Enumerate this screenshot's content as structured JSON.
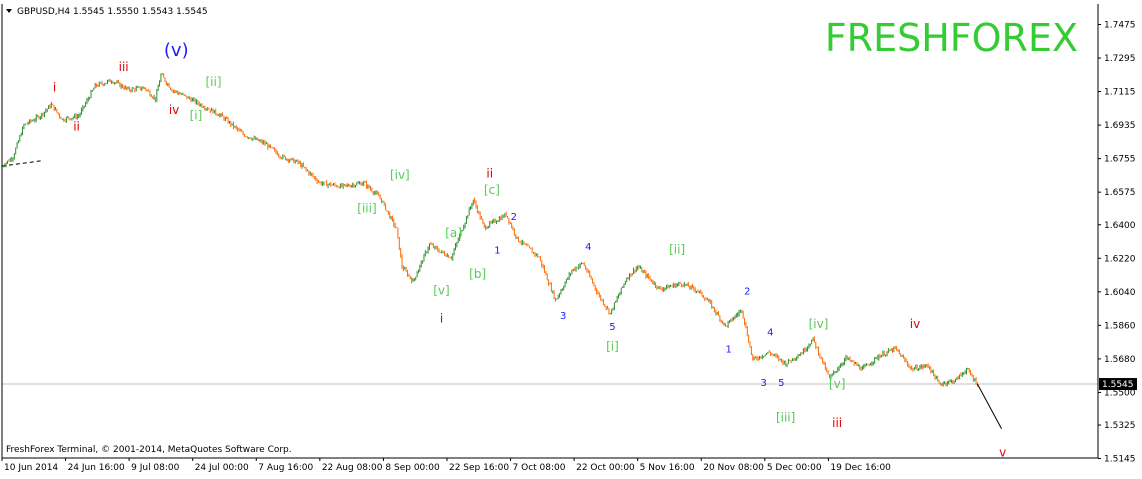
{
  "header": {
    "symbol_line": "GBPUSD,H4  1.5545 1.5550 1.5543 1.5545",
    "brand": "FRESHFOREX",
    "copyright": "FreshForex Terminal, © 2001-2014, MetaQuotes Software Corp."
  },
  "colors": {
    "up": "#2e8b2e",
    "down": "#ff6a00",
    "brand": "#33cc33",
    "wave_red": "#e00000",
    "wave_green": "#55cc55",
    "wave_blue": "#1a1aff",
    "price_line": "#c0c0c0",
    "axis": "#000000"
  },
  "chart_data": {
    "type": "candlestick",
    "symbol": "GBPUSD",
    "timeframe": "H4",
    "last_price": 1.5545,
    "ylim": [
      1.5148,
      1.7585
    ],
    "y_ticks": [
      "1.7475",
      "1.7295",
      "1.7115",
      "1.6935",
      "1.6755",
      "1.6575",
      "1.6400",
      "1.6220",
      "1.6040",
      "1.5860",
      "1.5680",
      "1.5500",
      "1.5325",
      "1.5145"
    ],
    "y_tick_values": [
      1.7475,
      1.7295,
      1.7115,
      1.6935,
      1.6755,
      1.6575,
      1.64,
      1.622,
      1.604,
      1.586,
      1.568,
      1.55,
      1.5325,
      1.5145
    ],
    "current_price_label": "1.5545",
    "x_ticks": [
      "10 Jun 2014",
      "24 Jun 16:00",
      "9 Jul 08:00",
      "24 Jul 00:00",
      "7 Aug 16:00",
      "22 Aug 08:00",
      "8 Sep 00:00",
      "22 Sep 16:00",
      "7 Oct 08:00",
      "22 Oct 00:00",
      "5 Nov 16:00",
      "20 Nov 08:00",
      "5 Dec 00:00",
      "19 Dec 16:00"
    ],
    "x_tick_positions": [
      0,
      0.058,
      0.116,
      0.174,
      0.232,
      0.29,
      0.348,
      0.406,
      0.464,
      0.522,
      0.58,
      0.638,
      0.696,
      0.754
    ],
    "price_path": [
      [
        0.0,
        1.6715
      ],
      [
        0.01,
        1.6765
      ],
      [
        0.02,
        1.6935
      ],
      [
        0.035,
        1.6985
      ],
      [
        0.045,
        1.7045
      ],
      [
        0.055,
        1.6965
      ],
      [
        0.07,
        1.6985
      ],
      [
        0.085,
        1.7145
      ],
      [
        0.1,
        1.7175
      ],
      [
        0.115,
        1.7125
      ],
      [
        0.13,
        1.7135
      ],
      [
        0.14,
        1.7075
      ],
      [
        0.145,
        1.7205
      ],
      [
        0.155,
        1.7125
      ],
      [
        0.175,
        1.7065
      ],
      [
        0.2,
        1.6985
      ],
      [
        0.22,
        1.6885
      ],
      [
        0.24,
        1.6835
      ],
      [
        0.255,
        1.6765
      ],
      [
        0.27,
        1.6735
      ],
      [
        0.29,
        1.6625
      ],
      [
        0.31,
        1.6605
      ],
      [
        0.33,
        1.6625
      ],
      [
        0.345,
        1.6545
      ],
      [
        0.36,
        1.6375
      ],
      [
        0.365,
        1.6175
      ],
      [
        0.375,
        1.6095
      ],
      [
        0.39,
        1.6295
      ],
      [
        0.4,
        1.6255
      ],
      [
        0.41,
        1.6225
      ],
      [
        0.43,
        1.6535
      ],
      [
        0.44,
        1.6385
      ],
      [
        0.46,
        1.6455
      ],
      [
        0.47,
        1.6325
      ],
      [
        0.49,
        1.6225
      ],
      [
        0.505,
        1.5995
      ],
      [
        0.52,
        1.6155
      ],
      [
        0.53,
        1.6195
      ],
      [
        0.545,
        1.6015
      ],
      [
        0.555,
        1.5925
      ],
      [
        0.57,
        1.6115
      ],
      [
        0.58,
        1.6175
      ],
      [
        0.6,
        1.6055
      ],
      [
        0.62,
        1.6085
      ],
      [
        0.635,
        1.6045
      ],
      [
        0.645,
        1.5985
      ],
      [
        0.66,
        1.5855
      ],
      [
        0.675,
        1.5945
      ],
      [
        0.685,
        1.5675
      ],
      [
        0.7,
        1.5715
      ],
      [
        0.715,
        1.5655
      ],
      [
        0.73,
        1.5715
      ],
      [
        0.74,
        1.5785
      ],
      [
        0.755,
        1.5575
      ],
      [
        0.77,
        1.5685
      ],
      [
        0.785,
        1.5625
      ],
      [
        0.8,
        1.5695
      ],
      [
        0.815,
        1.5735
      ],
      [
        0.83,
        1.5625
      ],
      [
        0.845,
        1.5645
      ],
      [
        0.855,
        1.5545
      ],
      [
        0.87,
        1.5565
      ],
      [
        0.88,
        1.5625
      ],
      [
        0.89,
        1.5545
      ]
    ],
    "projection": {
      "from": [
        0.89,
        1.5545
      ],
      "to": [
        0.912,
        1.5305
      ]
    },
    "trendline": {
      "from": [
        0.0,
        1.6715
      ],
      "to": [
        0.038,
        1.6745
      ]
    },
    "wave_labels": [
      {
        "text": "i",
        "x": 0.048,
        "y": 1.7115,
        "color": "wave_red"
      },
      {
        "text": "ii",
        "x": 0.068,
        "y": 1.6905,
        "color": "wave_red"
      },
      {
        "text": "iii",
        "x": 0.111,
        "y": 1.7225,
        "color": "wave_red"
      },
      {
        "text": "(v)",
        "x": 0.159,
        "y": 1.7305,
        "color": "wave_blue",
        "large": true
      },
      {
        "text": "iv",
        "x": 0.157,
        "y": 1.6995,
        "color": "wave_red"
      },
      {
        "text": "[ii]",
        "x": 0.193,
        "y": 1.7145,
        "color": "wave_green"
      },
      {
        "text": "[i]",
        "x": 0.177,
        "y": 1.6965,
        "color": "wave_green"
      },
      {
        "text": "[iv]",
        "x": 0.363,
        "y": 1.6645,
        "color": "wave_green"
      },
      {
        "text": "[iii]",
        "x": 0.333,
        "y": 1.6465,
        "color": "wave_green"
      },
      {
        "text": "ii",
        "x": 0.445,
        "y": 1.6655,
        "color": "wave_red"
      },
      {
        "text": "[c]",
        "x": 0.447,
        "y": 1.6565,
        "color": "wave_green"
      },
      {
        "text": "2",
        "x": 0.467,
        "y": 1.6425,
        "color": "wave_blue",
        "small": true
      },
      {
        "text": "[a]",
        "x": 0.412,
        "y": 1.6335,
        "color": "wave_green"
      },
      {
        "text": "1",
        "x": 0.452,
        "y": 1.6245,
        "color": "wave_blue",
        "small": true
      },
      {
        "text": "[b]",
        "x": 0.434,
        "y": 1.6115,
        "color": "wave_green"
      },
      {
        "text": "4",
        "x": 0.535,
        "y": 1.6265,
        "color": "wave_blue",
        "small": true
      },
      {
        "text": "[ii]",
        "x": 0.616,
        "y": 1.6245,
        "color": "wave_green"
      },
      {
        "text": "[v]",
        "x": 0.401,
        "y": 1.6025,
        "color": "wave_green"
      },
      {
        "text": "i",
        "x": 0.401,
        "y": 1.5875,
        "color": "wave_red"
      },
      {
        "text": "3",
        "x": 0.512,
        "y": 1.5895,
        "color": "wave_blue",
        "small": true
      },
      {
        "text": "5",
        "x": 0.557,
        "y": 1.5835,
        "color": "wave_blue",
        "small": true
      },
      {
        "text": "[i]",
        "x": 0.557,
        "y": 1.5725,
        "color": "wave_green"
      },
      {
        "text": "2",
        "x": 0.68,
        "y": 1.6025,
        "color": "wave_blue",
        "small": true
      },
      {
        "text": "4",
        "x": 0.701,
        "y": 1.5805,
        "color": "wave_blue",
        "small": true
      },
      {
        "text": "1",
        "x": 0.663,
        "y": 1.5715,
        "color": "wave_blue",
        "small": true
      },
      {
        "text": "[iv]",
        "x": 0.745,
        "y": 1.5845,
        "color": "wave_green"
      },
      {
        "text": "iv",
        "x": 0.833,
        "y": 1.5845,
        "color": "wave_red"
      },
      {
        "text": "3",
        "x": 0.695,
        "y": 1.5535,
        "color": "wave_blue",
        "small": true
      },
      {
        "text": "5",
        "x": 0.711,
        "y": 1.5535,
        "color": "wave_blue",
        "small": true
      },
      {
        "text": "[v]",
        "x": 0.762,
        "y": 1.5525,
        "color": "wave_green"
      },
      {
        "text": "[iii]",
        "x": 0.715,
        "y": 1.5345,
        "color": "wave_green"
      },
      {
        "text": "iii",
        "x": 0.762,
        "y": 1.5315,
        "color": "wave_red"
      },
      {
        "text": "v",
        "x": 0.913,
        "y": 1.5155,
        "color": "wave_red"
      }
    ]
  }
}
